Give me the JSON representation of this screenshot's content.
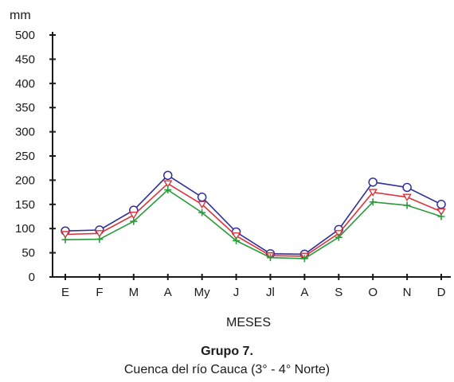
{
  "chart_data": {
    "type": "line",
    "title": "Grupo 7.",
    "subtitle": "Cuenca del río Cauca (3° -  4°  Norte)",
    "xlabel": "MESES",
    "ylabel": "mm",
    "ylim": [
      0,
      500
    ],
    "yticks": [
      0,
      50,
      100,
      150,
      200,
      250,
      300,
      350,
      400,
      450,
      500
    ],
    "grid": false,
    "legend": "none",
    "categories": [
      "E",
      "F",
      "M",
      "A",
      "My",
      "J",
      "Jl",
      "A",
      "S",
      "O",
      "N",
      "D"
    ],
    "series": [
      {
        "values": [
          95,
          97,
          138,
          210,
          165,
          93,
          48,
          47,
          98,
          196,
          185,
          150
        ],
        "color": "#2f2f9a",
        "marker": "circle"
      },
      {
        "values": [
          88,
          90,
          128,
          193,
          150,
          85,
          44,
          43,
          90,
          175,
          165,
          135
        ],
        "color": "#e0323a",
        "marker": "triangle-down"
      },
      {
        "values": [
          77,
          78,
          115,
          180,
          133,
          75,
          40,
          38,
          82,
          155,
          148,
          125
        ],
        "color": "#2a9a3a",
        "marker": "plus"
      }
    ]
  }
}
